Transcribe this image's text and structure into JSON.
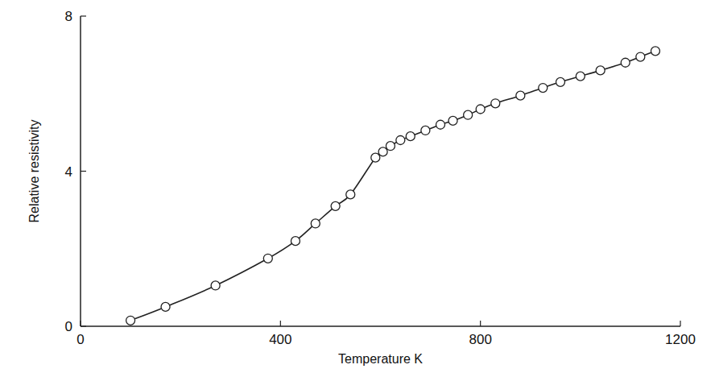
{
  "chart_data": {
    "type": "line",
    "x_label": "Temperature K",
    "y_label": "Relative resistivity",
    "x": [
      100,
      170,
      270,
      375,
      430,
      470,
      510,
      540,
      590,
      605,
      620,
      640,
      660,
      690,
      720,
      745,
      775,
      800,
      830,
      880,
      925,
      960,
      1000,
      1040,
      1090,
      1120,
      1150
    ],
    "values": [
      0.15,
      0.5,
      1.05,
      1.75,
      2.2,
      2.65,
      3.1,
      3.4,
      4.35,
      4.5,
      4.65,
      4.8,
      4.9,
      5.05,
      5.2,
      5.3,
      5.45,
      5.6,
      5.75,
      5.95,
      6.15,
      6.3,
      6.45,
      6.6,
      6.8,
      6.95,
      7.1
    ],
    "xlim": [
      0,
      1200
    ],
    "ylim": [
      0,
      8
    ],
    "xticks": [
      0,
      400,
      800,
      1200
    ],
    "yticks": [
      0,
      4,
      8
    ],
    "marker": "circle",
    "line_style": "solid",
    "color": "#222222"
  }
}
